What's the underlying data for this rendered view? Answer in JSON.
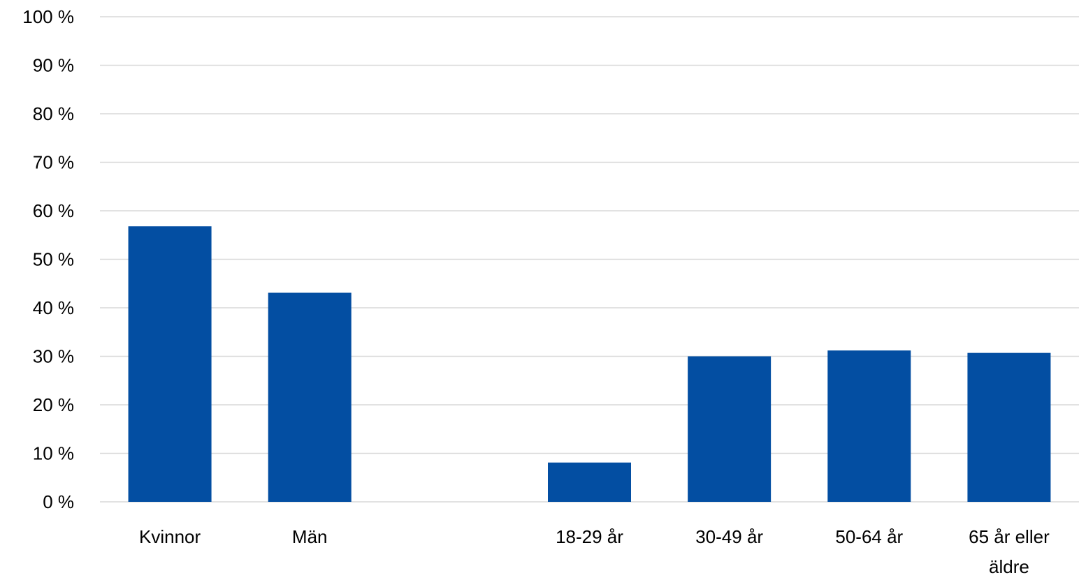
{
  "chart_data": {
    "type": "bar",
    "categories": [
      "Kvinnor",
      "Män",
      "",
      "18-29 år",
      "30-49 år",
      "50-64 år",
      "65 år eller äldre"
    ],
    "category_lines": [
      [
        "Kvinnor"
      ],
      [
        "Män"
      ],
      [
        ""
      ],
      [
        "18-29 år"
      ],
      [
        "30-49 år"
      ],
      [
        "50-64 år"
      ],
      [
        "65 år eller",
        "äldre"
      ]
    ],
    "values": [
      56.8,
      43.1,
      null,
      8.1,
      30.0,
      31.2,
      30.7
    ],
    "y_ticks": [
      "0 %",
      "10 %",
      "20 %",
      "30 %",
      "40 %",
      "50 %",
      "60 %",
      "70 %",
      "80 %",
      "90 %",
      "100 %"
    ],
    "ylim": [
      0,
      100
    ],
    "grid": true,
    "legend": "none",
    "bar_color": "#034EA2",
    "grid_color": "#D9D9D9"
  }
}
